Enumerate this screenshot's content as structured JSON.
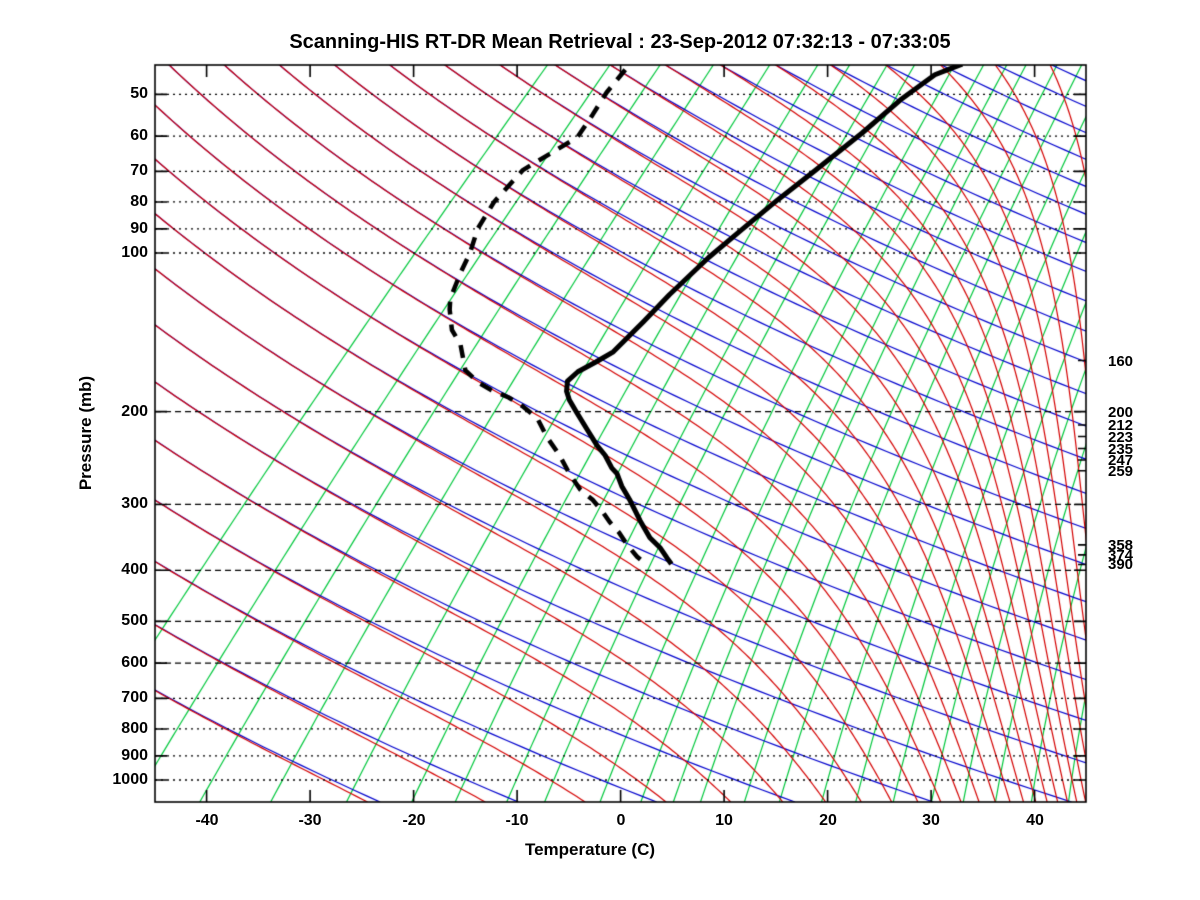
{
  "title": "Scanning-HIS RT-DR Mean Retrieval : 23-Sep-2012 07:32:13 - 07:33:05",
  "axes": {
    "pressure_label": "Pressure (mb)",
    "temperature_label": "Temperature (C)",
    "pressure_ticks": [
      50,
      60,
      70,
      80,
      90,
      100,
      200,
      300,
      400,
      500,
      600,
      700,
      800,
      900,
      1000
    ],
    "temperature_ticks": [
      -40,
      -30,
      -20,
      -10,
      0,
      10,
      20,
      30,
      40
    ],
    "right_level_labels": [
      160,
      200,
      212,
      223,
      235,
      247,
      259,
      358,
      374,
      390
    ]
  },
  "chart_data": {
    "type": "line",
    "subtype": "skew-t-log-p",
    "title": "Scanning-HIS RT-DR Mean Retrieval : 23-Sep-2012 07:32:13 - 07:33:05",
    "xlabel": "Temperature (C)",
    "ylabel": "Pressure (mb)",
    "x_range_c": [
      -45,
      45
    ],
    "y_range_mb": [
      44,
      1101
    ],
    "y_scale": "log",
    "grid": "dotted-horizontal-isobars",
    "series": [
      {
        "name": "temperature-profile",
        "style": "solid",
        "width": 5,
        "color": "#000000",
        "points_p_t": [
          [
            43.8,
            -38.3
          ],
          [
            45.9,
            -39.9
          ],
          [
            51.2,
            -40.8
          ],
          [
            59.2,
            -41.3
          ],
          [
            69.6,
            -42.2
          ],
          [
            79.3,
            -43.0
          ],
          [
            90.5,
            -43.6
          ],
          [
            102,
            -44.1
          ],
          [
            120,
            -44.3
          ],
          [
            135,
            -44.2
          ],
          [
            154,
            -44.2
          ],
          [
            161,
            -44.9
          ],
          [
            168,
            -45.7
          ],
          [
            175,
            -45.8
          ],
          [
            183,
            -44.9
          ],
          [
            190,
            -43.8
          ],
          [
            200,
            -42.0
          ],
          [
            217,
            -39.1
          ],
          [
            232,
            -36.7
          ],
          [
            242,
            -35.0
          ],
          [
            256,
            -33.1
          ],
          [
            262,
            -32.1
          ],
          [
            277,
            -30.4
          ],
          [
            295,
            -28.2
          ],
          [
            322,
            -25.3
          ],
          [
            347,
            -22.7
          ],
          [
            362,
            -20.8
          ],
          [
            379,
            -19.1
          ],
          [
            389,
            -18.1
          ]
        ]
      },
      {
        "name": "dew-point-profile",
        "style": "dashed",
        "width": 4.5,
        "color": "#000000",
        "points_p_t": [
          [
            44.9,
            -70.3
          ],
          [
            49.6,
            -69.9
          ],
          [
            54.7,
            -69.1
          ],
          [
            60.3,
            -68.4
          ],
          [
            69.6,
            -70.5
          ],
          [
            80,
            -70.2
          ],
          [
            89.9,
            -69.2
          ],
          [
            100,
            -67.6
          ],
          [
            109,
            -66.6
          ],
          [
            122,
            -65.1
          ],
          [
            128,
            -64.1
          ],
          [
            140,
            -61.9
          ],
          [
            149,
            -59.7
          ],
          [
            167,
            -56.7
          ],
          [
            176,
            -54.3
          ],
          [
            182,
            -52.3
          ],
          [
            188,
            -49.9
          ],
          [
            195,
            -47.8
          ],
          [
            206,
            -45.1
          ],
          [
            224,
            -42.3
          ],
          [
            242,
            -39.4
          ],
          [
            262,
            -36.7
          ],
          [
            281,
            -34.1
          ],
          [
            294,
            -31.9
          ],
          [
            308,
            -30.0
          ],
          [
            324,
            -28.1
          ],
          [
            339,
            -26.2
          ],
          [
            358,
            -24.2
          ],
          [
            377,
            -22.1
          ],
          [
            389,
            -20.6
          ]
        ]
      }
    ],
    "background_lines": {
      "isobars_mb": [
        50,
        60,
        70,
        80,
        90,
        100,
        200,
        300,
        400,
        500,
        600,
        700,
        800,
        900,
        1000
      ],
      "dry_adiabats": {
        "theta_k_min": 243.15,
        "theta_k_step": 13,
        "count": 31,
        "color": "#0000cd"
      },
      "moist_adiabats": {
        "theta_k_min": 243.15,
        "theta_k_step": 13,
        "count": 31,
        "color": "#d40000"
      },
      "mixing_ratio_g_kg": [
        0.02,
        0.05,
        0.1,
        0.2,
        0.4,
        0.7,
        1,
        1.5,
        2,
        3,
        4,
        5,
        6,
        8,
        10,
        13,
        16,
        20,
        25,
        30,
        36,
        44,
        54,
        66,
        80
      ],
      "mixing_ratio_color": "#00c83c",
      "isobar_color": "#000000"
    }
  }
}
